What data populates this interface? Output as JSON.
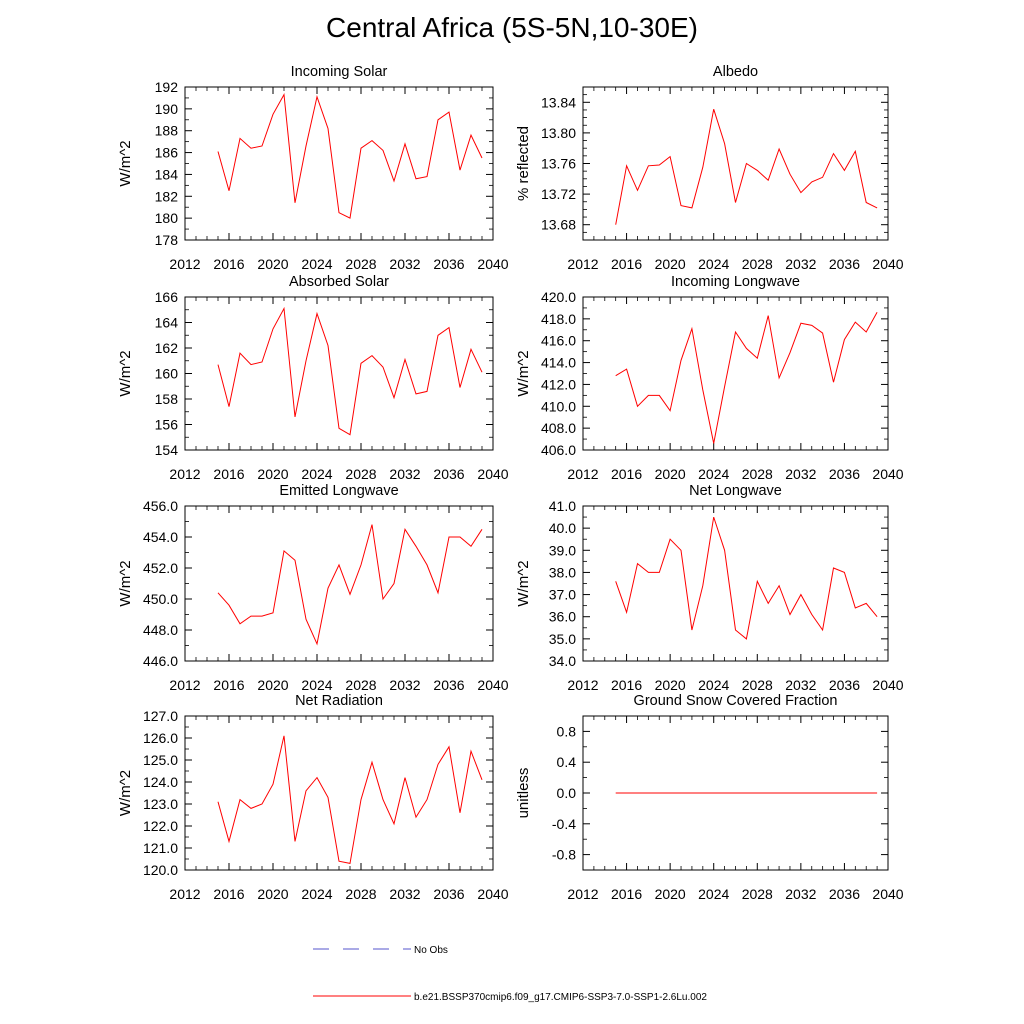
{
  "title": "Central Africa (5S-5N,10-30E)",
  "legend": [
    {
      "label": "No Obs",
      "color": "#5555cc",
      "dash": true
    },
    {
      "label": "b.e21.BSSP370cmip6.f09_g17.CMIP6-SSP3-7.0-SSP1-2.6Lu.002",
      "color": "#ff0000",
      "dash": false
    }
  ],
  "chart_data": [
    {
      "type": "line",
      "title": "Incoming Solar",
      "ylabel": "W/m^2",
      "xlim": [
        2012,
        2040
      ],
      "ylim": [
        178,
        192
      ],
      "x_ticks": [
        2012,
        2016,
        2020,
        2024,
        2028,
        2032,
        2036,
        2040
      ],
      "y_ticks": [
        178,
        180,
        182,
        184,
        186,
        188,
        190,
        192
      ],
      "y_tick_labels": [
        "178",
        "180",
        "182",
        "184",
        "186",
        "188",
        "190",
        "192"
      ],
      "y_minor": 1,
      "series": [
        {
          "color": "#ff0000",
          "x": [
            2015,
            2016,
            2017,
            2018,
            2019,
            2020,
            2021,
            2022,
            2023,
            2024,
            2025,
            2026,
            2027,
            2028,
            2029,
            2030,
            2031,
            2032,
            2033,
            2034,
            2035,
            2036,
            2037,
            2038,
            2039
          ],
          "values": [
            186.1,
            182.5,
            187.3,
            186.4,
            186.6,
            189.5,
            191.3,
            181.4,
            186.6,
            191.1,
            188.2,
            180.5,
            180.0,
            186.4,
            187.1,
            186.2,
            183.4,
            186.8,
            183.6,
            183.8,
            189.0,
            189.7,
            184.4,
            187.6,
            185.5
          ]
        }
      ]
    },
    {
      "type": "line",
      "title": "Albedo",
      "ylabel": "% reflected",
      "xlim": [
        2012,
        2040
      ],
      "ylim": [
        13.66,
        13.86
      ],
      "x_ticks": [
        2012,
        2016,
        2020,
        2024,
        2028,
        2032,
        2036,
        2040
      ],
      "y_ticks": [
        13.68,
        13.72,
        13.76,
        13.8,
        13.84
      ],
      "y_tick_labels": [
        "13.68",
        "13.72",
        "13.76",
        "13.80",
        "13.84"
      ],
      "y_minor": 0.01,
      "series": [
        {
          "color": "#ff0000",
          "x": [
            2015,
            2016,
            2017,
            2018,
            2019,
            2020,
            2021,
            2022,
            2023,
            2024,
            2025,
            2026,
            2027,
            2028,
            2029,
            2030,
            2031,
            2032,
            2033,
            2034,
            2035,
            2036,
            2037,
            2038,
            2039
          ],
          "values": [
            13.68,
            13.757,
            13.725,
            13.757,
            13.758,
            13.769,
            13.705,
            13.702,
            13.755,
            13.831,
            13.786,
            13.709,
            13.76,
            13.751,
            13.738,
            13.779,
            13.746,
            13.722,
            13.736,
            13.742,
            13.773,
            13.751,
            13.776,
            13.709,
            13.702
          ]
        }
      ]
    },
    {
      "type": "line",
      "title": "Absorbed Solar",
      "ylabel": "W/m^2",
      "xlim": [
        2012,
        2040
      ],
      "ylim": [
        154,
        166
      ],
      "x_ticks": [
        2012,
        2016,
        2020,
        2024,
        2028,
        2032,
        2036,
        2040
      ],
      "y_ticks": [
        154,
        156,
        158,
        160,
        162,
        164,
        166
      ],
      "y_tick_labels": [
        "154",
        "156",
        "158",
        "160",
        "162",
        "164",
        "166"
      ],
      "y_minor": 1,
      "series": [
        {
          "color": "#ff0000",
          "x": [
            2015,
            2016,
            2017,
            2018,
            2019,
            2020,
            2021,
            2022,
            2023,
            2024,
            2025,
            2026,
            2027,
            2028,
            2029,
            2030,
            2031,
            2032,
            2033,
            2034,
            2035,
            2036,
            2037,
            2038,
            2039
          ],
          "values": [
            160.7,
            157.4,
            161.6,
            160.7,
            160.9,
            163.5,
            165.1,
            156.6,
            161.0,
            164.7,
            162.2,
            155.7,
            155.2,
            160.8,
            161.4,
            160.5,
            158.1,
            161.1,
            158.4,
            158.6,
            163.0,
            163.6,
            158.9,
            161.9,
            160.1
          ]
        }
      ]
    },
    {
      "type": "line",
      "title": "Incoming Longwave",
      "ylabel": "W/m^2",
      "xlim": [
        2012,
        2040
      ],
      "ylim": [
        406,
        420
      ],
      "x_ticks": [
        2012,
        2016,
        2020,
        2024,
        2028,
        2032,
        2036,
        2040
      ],
      "y_ticks": [
        406,
        408,
        410,
        412,
        414,
        416,
        418,
        420
      ],
      "y_tick_labels": [
        "406.0",
        "408.0",
        "410.0",
        "412.0",
        "414.0",
        "416.0",
        "418.0",
        "420.0"
      ],
      "y_minor": 1,
      "series": [
        {
          "color": "#ff0000",
          "x": [
            2015,
            2016,
            2017,
            2018,
            2019,
            2020,
            2021,
            2022,
            2023,
            2024,
            2025,
            2026,
            2027,
            2028,
            2029,
            2030,
            2031,
            2032,
            2033,
            2034,
            2035,
            2036,
            2037,
            2038,
            2039
          ],
          "values": [
            412.8,
            413.4,
            410.0,
            411.0,
            411.0,
            409.6,
            414.2,
            417.1,
            411.5,
            406.6,
            411.8,
            416.8,
            415.3,
            414.4,
            418.3,
            412.6,
            414.9,
            417.6,
            417.4,
            416.7,
            412.2,
            416.1,
            417.7,
            416.8,
            418.6
          ]
        }
      ]
    },
    {
      "type": "line",
      "title": "Emitted Longwave",
      "ylabel": "W/m^2",
      "xlim": [
        2012,
        2040
      ],
      "ylim": [
        446,
        456
      ],
      "x_ticks": [
        2012,
        2016,
        2020,
        2024,
        2028,
        2032,
        2036,
        2040
      ],
      "y_ticks": [
        446,
        448,
        450,
        452,
        454,
        456
      ],
      "y_tick_labels": [
        "446.0",
        "448.0",
        "450.0",
        "452.0",
        "454.0",
        "456.0"
      ],
      "y_minor": 1,
      "series": [
        {
          "color": "#ff0000",
          "x": [
            2015,
            2016,
            2017,
            2018,
            2019,
            2020,
            2021,
            2022,
            2023,
            2024,
            2025,
            2026,
            2027,
            2028,
            2029,
            2030,
            2031,
            2032,
            2033,
            2034,
            2035,
            2036,
            2037,
            2038,
            2039
          ],
          "values": [
            450.4,
            449.6,
            448.4,
            448.9,
            448.9,
            449.1,
            453.1,
            452.5,
            448.7,
            447.1,
            450.7,
            452.2,
            450.3,
            452.2,
            454.8,
            450.0,
            451.0,
            454.5,
            453.4,
            452.2,
            450.4,
            454.0,
            454.0,
            453.4,
            454.5
          ]
        }
      ]
    },
    {
      "type": "line",
      "title": "Net Longwave",
      "ylabel": "W/m^2",
      "xlim": [
        2012,
        2040
      ],
      "ylim": [
        34,
        41
      ],
      "x_ticks": [
        2012,
        2016,
        2020,
        2024,
        2028,
        2032,
        2036,
        2040
      ],
      "y_ticks": [
        34,
        35,
        36,
        37,
        38,
        39,
        40,
        41
      ],
      "y_tick_labels": [
        "34.0",
        "35.0",
        "36.0",
        "37.0",
        "38.0",
        "39.0",
        "40.0",
        "41.0"
      ],
      "y_minor": 0.5,
      "series": [
        {
          "color": "#ff0000",
          "x": [
            2015,
            2016,
            2017,
            2018,
            2019,
            2020,
            2021,
            2022,
            2023,
            2024,
            2025,
            2026,
            2027,
            2028,
            2029,
            2030,
            2031,
            2032,
            2033,
            2034,
            2035,
            2036,
            2037,
            2038,
            2039
          ],
          "values": [
            37.6,
            36.2,
            38.4,
            38.0,
            38.0,
            39.5,
            39.0,
            35.4,
            37.4,
            40.5,
            39.0,
            35.4,
            35.0,
            37.6,
            36.6,
            37.4,
            36.1,
            37.0,
            36.1,
            35.4,
            38.2,
            38.0,
            36.4,
            36.6,
            36.0
          ]
        }
      ]
    },
    {
      "type": "line",
      "title": "Net Radiation",
      "ylabel": "W/m^2",
      "xlim": [
        2012,
        2040
      ],
      "ylim": [
        120,
        127
      ],
      "x_ticks": [
        2012,
        2016,
        2020,
        2024,
        2028,
        2032,
        2036,
        2040
      ],
      "y_ticks": [
        120,
        121,
        122,
        123,
        124,
        125,
        126,
        127
      ],
      "y_tick_labels": [
        "120.0",
        "121.0",
        "122.0",
        "123.0",
        "124.0",
        "125.0",
        "126.0",
        "127.0"
      ],
      "y_minor": 0.5,
      "series": [
        {
          "color": "#ff0000",
          "x": [
            2015,
            2016,
            2017,
            2018,
            2019,
            2020,
            2021,
            2022,
            2023,
            2024,
            2025,
            2026,
            2027,
            2028,
            2029,
            2030,
            2031,
            2032,
            2033,
            2034,
            2035,
            2036,
            2037,
            2038,
            2039
          ],
          "values": [
            123.1,
            121.3,
            123.2,
            122.8,
            123.0,
            123.9,
            126.1,
            121.3,
            123.6,
            124.2,
            123.3,
            120.4,
            120.3,
            123.2,
            124.9,
            123.2,
            122.1,
            124.2,
            122.4,
            123.2,
            124.8,
            125.6,
            122.6,
            125.4,
            124.1
          ]
        }
      ]
    },
    {
      "type": "line",
      "title": "Ground Snow Covered Fraction",
      "ylabel": "unitless",
      "xlim": [
        2012,
        2040
      ],
      "ylim": [
        -1.0,
        1.0
      ],
      "x_ticks": [
        2012,
        2016,
        2020,
        2024,
        2028,
        2032,
        2036,
        2040
      ],
      "y_ticks": [
        -0.8,
        -0.4,
        0.0,
        0.4,
        0.8
      ],
      "y_tick_labels": [
        "-0.8",
        "-0.4",
        "0.0",
        "0.4",
        "0.8"
      ],
      "y_minor": 0.2,
      "series": [
        {
          "color": "#ff0000",
          "x": [
            2015,
            2039
          ],
          "values": [
            0.0,
            0.0
          ]
        }
      ]
    }
  ]
}
